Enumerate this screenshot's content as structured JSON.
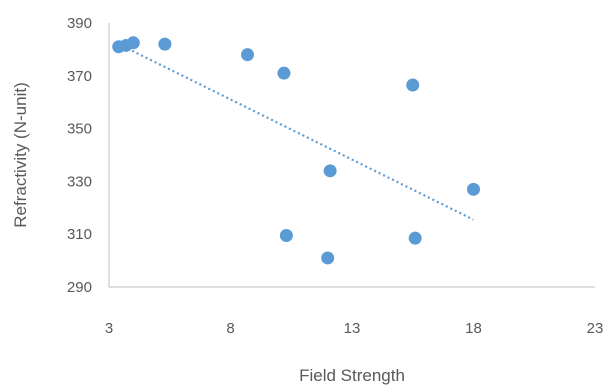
{
  "chart_data": {
    "type": "scatter",
    "title": "",
    "xlabel": "Field Strength",
    "ylabel": "Refractivity (N-unit)",
    "xlim": [
      3,
      23
    ],
    "ylim": [
      290,
      390
    ],
    "xticks": [
      "3",
      "8",
      "13",
      "18",
      "23"
    ],
    "yticks": [
      "290",
      "310",
      "330",
      "350",
      "370",
      "390"
    ],
    "grid": false,
    "legend": "none",
    "series": [
      {
        "color": "#5b9bd5",
        "points": [
          {
            "x": 3.4,
            "y": 381
          },
          {
            "x": 3.7,
            "y": 381.5
          },
          {
            "x": 4.0,
            "y": 382.5
          },
          {
            "x": 5.3,
            "y": 382
          },
          {
            "x": 8.7,
            "y": 378
          },
          {
            "x": 10.2,
            "y": 371
          },
          {
            "x": 10.3,
            "y": 309.5
          },
          {
            "x": 12.0,
            "y": 301
          },
          {
            "x": 12.1,
            "y": 334
          },
          {
            "x": 15.5,
            "y": 366.5
          },
          {
            "x": 15.6,
            "y": 308.5
          },
          {
            "x": 18.0,
            "y": 327
          }
        ]
      }
    ],
    "trendline": {
      "style": "linear-dotted",
      "color": "#5b9bd5",
      "from": {
        "x": 3.4,
        "y": 382
      },
      "to": {
        "x": 18.0,
        "y": 315.5
      }
    }
  }
}
